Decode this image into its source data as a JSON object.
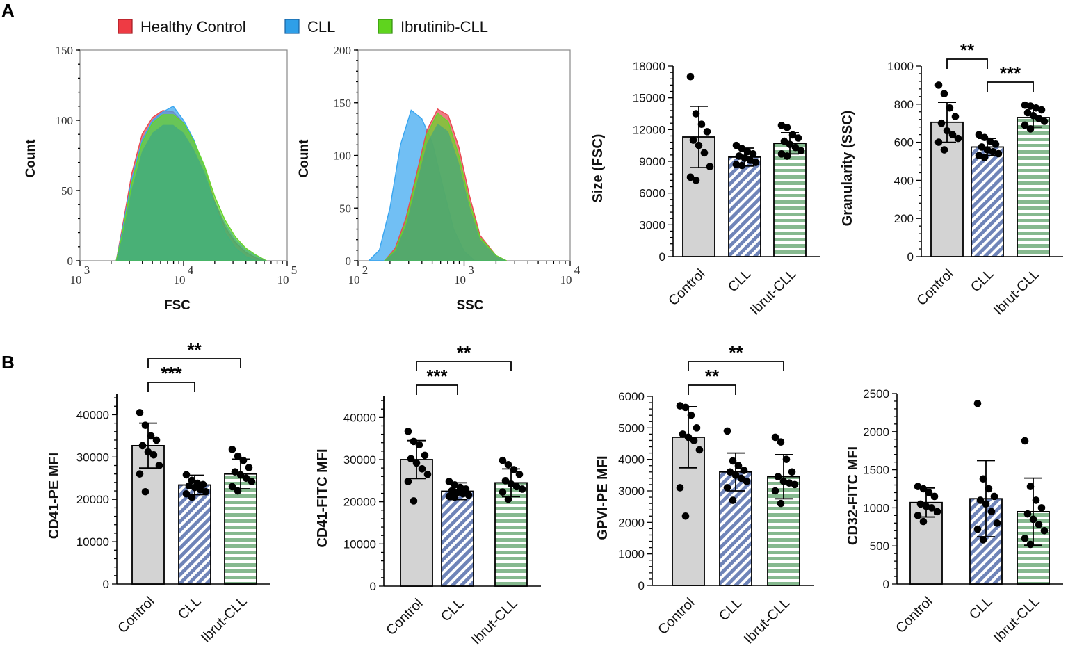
{
  "panels": {
    "a": "A",
    "b": "B"
  },
  "legend": {
    "items": [
      {
        "label": "Healthy Control",
        "color": "#ee3b44"
      },
      {
        "label": "CLL",
        "color": "#2f9fe8"
      },
      {
        "label": "Ibrutinib-CLL",
        "color": "#5fd41e"
      }
    ]
  },
  "colors": {
    "control_bar": "#d3d3d3",
    "cll_bar": "#6f84b8",
    "ibrut_bar": "#86b98f",
    "dot": "#000000",
    "hist_control": "#e84a52",
    "hist_cll": "#3aa6f0",
    "hist_ibrut": "#66d62a",
    "hist_overlap": "#2f9e8f"
  },
  "chart_data": [
    {
      "id": "fsc-histogram",
      "type": "area",
      "xlabel": "FSC",
      "ylabel": "Count",
      "x_scale": "log",
      "x_ticks": [
        {
          "base": "10",
          "exp": "3"
        },
        {
          "base": "10",
          "exp": "4"
        },
        {
          "base": "10",
          "exp": "5"
        }
      ],
      "y_ticks": [
        "0",
        "50",
        "100",
        "150"
      ],
      "ylim": [
        0,
        150
      ],
      "series": [
        {
          "name": "Healthy Control",
          "color_key": "hist_control",
          "points": [
            [
              3.35,
              0
            ],
            [
              3.4,
              20
            ],
            [
              3.5,
              62
            ],
            [
              3.6,
              90
            ],
            [
              3.7,
              102
            ],
            [
              3.8,
              107
            ],
            [
              3.9,
              106
            ],
            [
              4.0,
              98
            ],
            [
              4.1,
              85
            ],
            [
              4.2,
              67
            ],
            [
              4.3,
              42
            ],
            [
              4.4,
              24
            ],
            [
              4.5,
              13
            ],
            [
              4.6,
              6
            ],
            [
              4.7,
              2
            ],
            [
              4.8,
              0
            ]
          ]
        },
        {
          "name": "CLL",
          "color_key": "hist_cll",
          "points": [
            [
              3.35,
              0
            ],
            [
              3.4,
              18
            ],
            [
              3.5,
              58
            ],
            [
              3.6,
              86
            ],
            [
              3.7,
              100
            ],
            [
              3.8,
              106
            ],
            [
              3.9,
              110
            ],
            [
              4.0,
              100
            ],
            [
              4.1,
              86
            ],
            [
              4.2,
              66
            ],
            [
              4.3,
              40
            ],
            [
              4.4,
              20
            ],
            [
              4.5,
              9
            ],
            [
              4.6,
              3
            ],
            [
              4.7,
              0
            ]
          ]
        },
        {
          "name": "Ibrutinib-CLL",
          "color_key": "hist_ibrut",
          "points": [
            [
              3.35,
              0
            ],
            [
              3.4,
              16
            ],
            [
              3.5,
              55
            ],
            [
              3.6,
              84
            ],
            [
              3.7,
              98
            ],
            [
              3.8,
              104
            ],
            [
              3.9,
              104
            ],
            [
              4.0,
              98
            ],
            [
              4.1,
              85
            ],
            [
              4.2,
              68
            ],
            [
              4.3,
              46
            ],
            [
              4.4,
              29
            ],
            [
              4.5,
              17
            ],
            [
              4.6,
              9
            ],
            [
              4.7,
              4
            ],
            [
              4.8,
              0
            ]
          ]
        }
      ]
    },
    {
      "id": "ssc-histogram",
      "type": "area",
      "xlabel": "SSC",
      "ylabel": "Count",
      "x_scale": "log",
      "x_ticks": [
        {
          "base": "10",
          "exp": "2"
        },
        {
          "base": "10",
          "exp": "3"
        },
        {
          "base": "10",
          "exp": "4"
        }
      ],
      "y_ticks": [
        "0",
        "50",
        "100",
        "150",
        "200"
      ],
      "ylim": [
        0,
        200
      ],
      "series": [
        {
          "name": "CLL",
          "color_key": "hist_cll",
          "points": [
            [
              2.1,
              0
            ],
            [
              2.2,
              10
            ],
            [
              2.3,
              50
            ],
            [
              2.4,
              110
            ],
            [
              2.5,
              143
            ],
            [
              2.6,
              135
            ],
            [
              2.7,
              112
            ],
            [
              2.8,
              70
            ],
            [
              2.9,
              30
            ],
            [
              3.0,
              9
            ],
            [
              3.1,
              0
            ]
          ]
        },
        {
          "name": "Healthy Control",
          "color_key": "hist_control",
          "points": [
            [
              2.25,
              0
            ],
            [
              2.35,
              12
            ],
            [
              2.45,
              40
            ],
            [
              2.55,
              82
            ],
            [
              2.65,
              124
            ],
            [
              2.75,
              144
            ],
            [
              2.85,
              138
            ],
            [
              2.95,
              108
            ],
            [
              3.05,
              62
            ],
            [
              3.15,
              24
            ],
            [
              3.3,
              5
            ],
            [
              3.4,
              0
            ]
          ]
        },
        {
          "name": "Ibrutinib-CLL",
          "color_key": "hist_ibrut",
          "points": [
            [
              2.25,
              0
            ],
            [
              2.35,
              10
            ],
            [
              2.45,
              36
            ],
            [
              2.55,
              78
            ],
            [
              2.65,
              120
            ],
            [
              2.75,
              140
            ],
            [
              2.85,
              132
            ],
            [
              2.95,
              100
            ],
            [
              3.05,
              56
            ],
            [
              3.15,
              22
            ],
            [
              3.3,
              5
            ],
            [
              3.4,
              0
            ]
          ]
        }
      ]
    },
    {
      "id": "size-fsc",
      "type": "bar",
      "ylabel": "Size (FSC)",
      "ylim": [
        0,
        18000
      ],
      "y_ticks": [
        "0",
        "3000",
        "6000",
        "9000",
        "12000",
        "15000",
        "18000"
      ],
      "categories": [
        "Control",
        "CLL",
        "Ibrut-CLL"
      ],
      "means": [
        11300,
        9400,
        10700
      ],
      "sd": [
        2900,
        850,
        1000
      ],
      "points": [
        [
          17000,
          13500,
          12500,
          11800,
          11000,
          10500,
          9800,
          8500,
          7500,
          7200
        ],
        [
          10500,
          10200,
          9900,
          9700,
          9500,
          9300,
          9100,
          8900,
          8700,
          8600
        ],
        [
          12400,
          12200,
          11500,
          11200,
          10900,
          10600,
          10300,
          10000,
          9700,
          9500
        ]
      ],
      "significance": []
    },
    {
      "id": "granularity-ssc",
      "type": "bar",
      "ylabel": "Granularity (SSC)",
      "ylim": [
        0,
        1000
      ],
      "y_ticks": [
        "0",
        "200",
        "400",
        "600",
        "800",
        "1000"
      ],
      "categories": [
        "Control",
        "CLL",
        "Ibrut-CLL"
      ],
      "means": [
        705,
        575,
        730
      ],
      "sd": [
        105,
        45,
        50
      ],
      "points": [
        [
          900,
          855,
          780,
          735,
          700,
          660,
          640,
          620,
          600,
          560
        ],
        [
          640,
          625,
          605,
          590,
          575,
          560,
          550,
          540,
          530,
          520
        ],
        [
          795,
          790,
          780,
          770,
          755,
          740,
          725,
          710,
          690,
          670
        ]
      ],
      "significance": [
        {
          "from": 0,
          "to": 1,
          "label": "**",
          "level": 0
        },
        {
          "from": 1,
          "to": 2,
          "label": "***",
          "level": 1
        }
      ]
    },
    {
      "id": "cd41-pe",
      "type": "bar",
      "ylabel": "CD41-PE MFI",
      "ylim": [
        0,
        45000
      ],
      "y_ticks": [
        "0",
        "10000",
        "20000",
        "30000",
        "40000"
      ],
      "categories": [
        "Control",
        "CLL",
        "Ibrut-CLL"
      ],
      "means": [
        32700,
        23400,
        26000
      ],
      "sd": [
        5300,
        2300,
        3500
      ],
      "points": [
        [
          40500,
          37500,
          35000,
          34000,
          32700,
          31200,
          30500,
          28000,
          26000,
          21800
        ],
        [
          25800,
          24500,
          23800,
          23500,
          23200,
          22800,
          22300,
          21800,
          21300,
          20500
        ],
        [
          31800,
          30200,
          29200,
          27500,
          26500,
          25800,
          25000,
          24200,
          23000,
          22000
        ]
      ],
      "significance": [
        {
          "from": 0,
          "to": 1,
          "label": "***",
          "level": 0
        },
        {
          "from": 0,
          "to": 2,
          "label": "**",
          "level": 1
        }
      ]
    },
    {
      "id": "cd41-fitc",
      "type": "bar",
      "ylabel": "CD41-FITC MFI",
      "ylim": [
        0,
        45000
      ],
      "y_ticks": [
        "0",
        "10000",
        "20000",
        "30000",
        "40000"
      ],
      "categories": [
        "Control",
        "CLL",
        "Ibrut-CLL"
      ],
      "means": [
        30000,
        22500,
        24500
      ],
      "sd": [
        4500,
        2000,
        3300
      ],
      "points": [
        [
          36700,
          34300,
          33500,
          31000,
          30200,
          29200,
          27800,
          26500,
          24800,
          20200
        ],
        [
          24800,
          24000,
          23400,
          23000,
          22600,
          22200,
          21900,
          21600,
          21300,
          21100
        ],
        [
          29800,
          28800,
          27600,
          26500,
          25000,
          24200,
          23600,
          23000,
          22300,
          20600
        ]
      ],
      "significance": [
        {
          "from": 0,
          "to": 1,
          "label": "***",
          "level": 0
        },
        {
          "from": 0,
          "to": 2,
          "label": "**",
          "level": 1
        }
      ]
    },
    {
      "id": "gpvi-pe",
      "type": "bar",
      "ylabel": "GPVI-PE MFI",
      "ylim": [
        0,
        6000
      ],
      "y_ticks": [
        "0",
        "1000",
        "2000",
        "3000",
        "4000",
        "5000",
        "6000"
      ],
      "categories": [
        "Control",
        "CLL",
        "Ibrut-CLL"
      ],
      "means": [
        4700,
        3600,
        3450
      ],
      "sd": [
        970,
        600,
        700
      ],
      "points": [
        [
          5700,
          5650,
          5400,
          5000,
          4800,
          4700,
          4600,
          4300,
          3100,
          2200
        ],
        [
          4900,
          3950,
          3800,
          3650,
          3600,
          3500,
          3400,
          3300,
          3100,
          2700
        ],
        [
          4700,
          4550,
          4000,
          3600,
          3450,
          3300,
          3250,
          3200,
          3000,
          2600
        ]
      ],
      "significance": [
        {
          "from": 0,
          "to": 1,
          "label": "**",
          "level": 0
        },
        {
          "from": 0,
          "to": 2,
          "label": "**",
          "level": 1
        }
      ]
    },
    {
      "id": "cd32-fitc",
      "type": "bar",
      "ylabel": "CD32-FITC MFI",
      "ylim": [
        0,
        2500
      ],
      "y_ticks": [
        "0",
        "500",
        "1000",
        "1500",
        "2000",
        "2500"
      ],
      "categories": [
        "Control",
        "CLL",
        "Ibrut-CLL"
      ],
      "means": [
        1070,
        1120,
        950
      ],
      "sd": [
        190,
        500,
        440
      ],
      "points": [
        [
          1280,
          1250,
          1200,
          1150,
          1050,
          1020,
          1000,
          950,
          900,
          820
        ],
        [
          2370,
          1380,
          1250,
          1150,
          1100,
          1050,
          950,
          800,
          720,
          580
        ],
        [
          1880,
          1280,
          1100,
          1000,
          920,
          850,
          780,
          700,
          600,
          520
        ]
      ],
      "significance": []
    }
  ]
}
